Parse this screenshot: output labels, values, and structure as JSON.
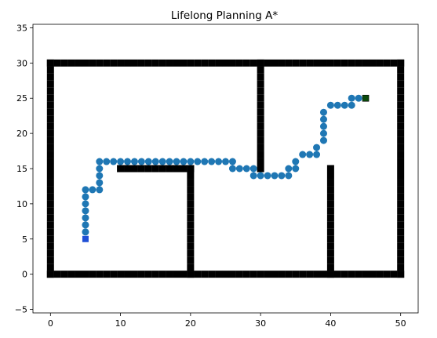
{
  "chart_data": {
    "type": "scatter",
    "title": "Lifelong Planning A*",
    "xlabel": "",
    "ylabel": "",
    "xlim": [
      -2.5,
      52.5
    ],
    "ylim": [
      -5.5,
      35.5
    ],
    "x_ticks": [
      0,
      10,
      20,
      30,
      40,
      50
    ],
    "y_ticks": [
      -5,
      0,
      5,
      10,
      15,
      20,
      25,
      30,
      35
    ],
    "grid": false,
    "obstacle_color": "#000000",
    "path_color": "#1f77b4",
    "start_color": "#1f4fd6",
    "goal_color": "#0b4a0b",
    "obstacle_segments": [
      {
        "x0": 0,
        "y0": 0,
        "x1": 50,
        "y1": 0
      },
      {
        "x0": 0,
        "y0": 30,
        "x1": 50,
        "y1": 30
      },
      {
        "x0": 0,
        "y0": 0,
        "x1": 0,
        "y1": 30
      },
      {
        "x0": 50,
        "y0": 0,
        "x1": 50,
        "y1": 30
      },
      {
        "x0": 10,
        "y0": 15,
        "x1": 20,
        "y1": 15
      },
      {
        "x0": 20,
        "y0": 0,
        "x1": 20,
        "y1": 15
      },
      {
        "x0": 30,
        "y0": 15,
        "x1": 30,
        "y1": 30
      },
      {
        "x0": 40,
        "y0": 0,
        "x1": 40,
        "y1": 15
      }
    ],
    "path": {
      "x": [
        5,
        5,
        5,
        5,
        5,
        5,
        5,
        6,
        7,
        7,
        7,
        7,
        7,
        8,
        9,
        10,
        11,
        12,
        13,
        14,
        15,
        16,
        17,
        18,
        19,
        20,
        21,
        22,
        23,
        24,
        25,
        26,
        26,
        27,
        28,
        29,
        29,
        30,
        31,
        32,
        33,
        34,
        34,
        35,
        35,
        36,
        37,
        38,
        38,
        39,
        39,
        39,
        39,
        39,
        40,
        41,
        42,
        43,
        43,
        44
      ],
      "y": [
        6,
        7,
        8,
        9,
        10,
        11,
        12,
        12,
        12,
        13,
        14,
        15,
        16,
        16,
        16,
        16,
        16,
        16,
        16,
        16,
        16,
        16,
        16,
        16,
        16,
        16,
        16,
        16,
        16,
        16,
        16,
        16,
        15,
        15,
        15,
        15,
        14,
        14,
        14,
        14,
        14,
        14,
        15,
        15,
        16,
        17,
        17,
        17,
        18,
        19,
        20,
        21,
        22,
        23,
        24,
        24,
        24,
        24,
        25,
        25
      ]
    },
    "start": {
      "x": 5,
      "y": 5
    },
    "goal": {
      "x": 45,
      "y": 25
    }
  }
}
